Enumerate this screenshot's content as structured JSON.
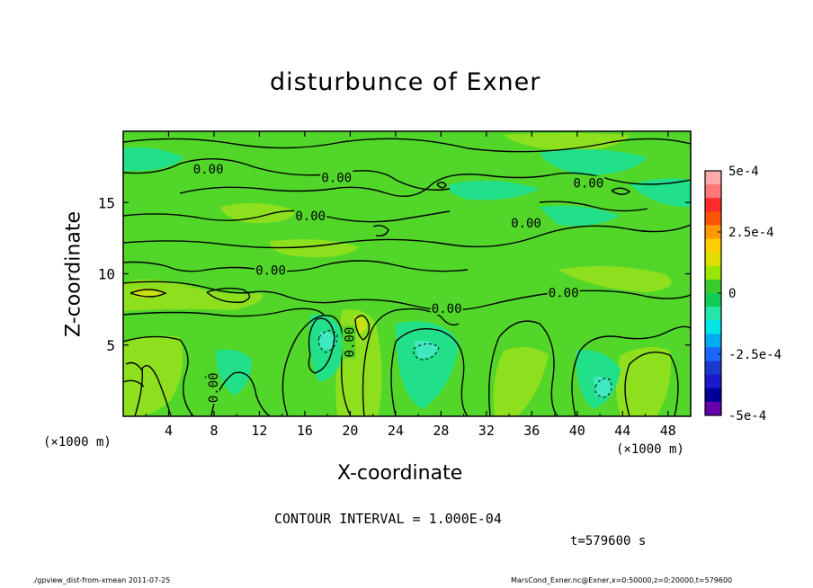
{
  "chart_data": {
    "type": "heatmap",
    "title": "disturbunce of Exner",
    "xlabel": "X-coordinate",
    "ylabel": "Z-coordinate",
    "x_unit": "(×1000 m)",
    "x_unit_right": "(×1000 m)",
    "xlim": [
      0,
      50
    ],
    "ylim": [
      0,
      20
    ],
    "x_ticks": [
      4,
      8,
      12,
      16,
      20,
      24,
      28,
      32,
      36,
      40,
      44,
      48
    ],
    "y_ticks": [
      5,
      10,
      15
    ],
    "colorbar": {
      "range": [
        -0.0005,
        0.0005
      ],
      "tick_labels": [
        "5e-4",
        "2.5e-4",
        "0",
        "-2.5e-4",
        "-5e-4"
      ],
      "tick_values": [
        0.0005,
        0.00025,
        0,
        -0.00025,
        -0.0005
      ],
      "colors": [
        "#ffaaaa",
        "#ff7777",
        "#ff2a2a",
        "#ff5500",
        "#ff9900",
        "#ffcc00",
        "#dddd00",
        "#99e600",
        "#3acd2a",
        "#12cc55",
        "#22e6aa",
        "#00e5e5",
        "#00aaee",
        "#1a66ff",
        "#1a3acc",
        "#1a1acc",
        "#000099",
        "#6600aa"
      ]
    },
    "contour_labels": [
      {
        "text": "0.00",
        "x": 7.5,
        "z": 17.3
      },
      {
        "text": "0.00",
        "x": 18.8,
        "z": 16.7
      },
      {
        "text": "0.00",
        "x": 16.5,
        "z": 14.0
      },
      {
        "text": "0.00",
        "x": 13.0,
        "z": 10.2
      },
      {
        "text": "0.00",
        "x": 28.5,
        "z": 7.5
      },
      {
        "text": "0.00",
        "x": 38.8,
        "z": 8.6
      },
      {
        "text": "0.00",
        "x": 35.5,
        "z": 13.5
      },
      {
        "text": "0.00",
        "x": 41.0,
        "z": 16.3
      },
      {
        "text": "0.00",
        "x": 20.0,
        "z": 5.2
      },
      {
        "text": "0.00",
        "x": 8.0,
        "z": 2.0
      }
    ]
  },
  "labels": {
    "contour_interval": "CONTOUR INTERVAL = 1.000E-04",
    "time": "t=579600 s",
    "footer_left": "./gpview_dist-from-xmean  2011-07-25",
    "footer_right": "MarsCond_Exner.nc@Exner,x=0:50000,z=0:20000,t=579600"
  }
}
